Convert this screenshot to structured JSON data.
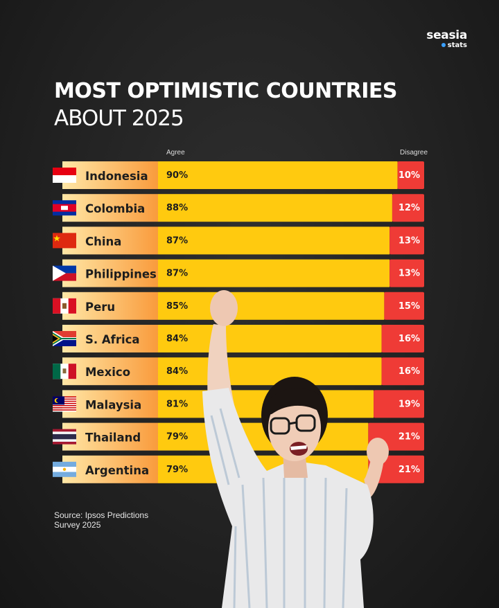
{
  "brand": {
    "name": "seasia",
    "sub": "stats"
  },
  "title": {
    "line1": "MOST OPTIMISTIC COUNTRIES",
    "line2": "ABOUT 2025"
  },
  "source": "Source: Ipsos Predictions Survey 2025",
  "colors": {
    "agree": "#FFCA0F",
    "disagree": "#EF3B36",
    "label_start": "#FFE7A6",
    "label_end": "#F99B3C"
  },
  "chart_data": {
    "type": "bar",
    "stacked": true,
    "orientation": "horizontal",
    "header_labels": [
      "Agree",
      "Disagree"
    ],
    "categories": [
      "Indonesia",
      "Colombia",
      "China",
      "Philippines",
      "Peru",
      "S. Africa",
      "Mexico",
      "Malaysia",
      "Thailand",
      "Argentina"
    ],
    "series": [
      {
        "name": "Agree",
        "values": [
          90,
          88,
          87,
          87,
          85,
          84,
          84,
          81,
          79,
          79
        ]
      },
      {
        "name": "Disagree",
        "values": [
          10,
          12,
          13,
          13,
          15,
          16,
          16,
          19,
          21,
          21
        ]
      }
    ],
    "value_labels": {
      "agree": [
        "90%",
        "88%",
        "87%",
        "87%",
        "85%",
        "84%",
        "84%",
        "81%",
        "79%",
        "79%"
      ],
      "disagree": [
        "10%",
        "12%",
        "13%",
        "13%",
        "15%",
        "16%",
        "16%",
        "19%",
        "21%",
        "21%"
      ]
    },
    "flags": [
      "indonesia-flag",
      "cambodia-flag",
      "china-flag",
      "philippines-flag",
      "peru-flag",
      "south-africa-flag",
      "mexico-flag",
      "malaysia-flag",
      "thailand-flag",
      "argentina-flag"
    ]
  }
}
